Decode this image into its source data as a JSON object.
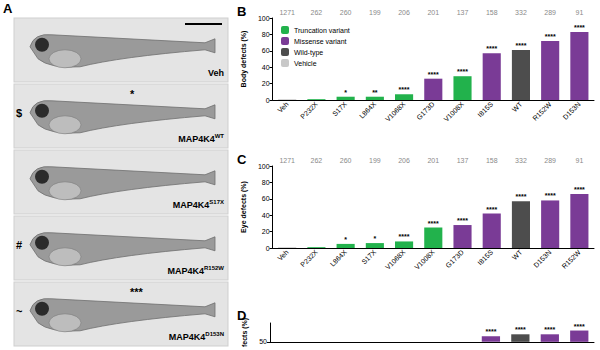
{
  "panel_a": {
    "label": "A",
    "images": [
      {
        "label": "Veh"
      },
      {
        "label": "MAP4K4",
        "superscript": "WT",
        "marks": [
          "$",
          "*"
        ]
      },
      {
        "label": "MAP4K4",
        "superscript": "S17X"
      },
      {
        "label": "MAP4K4",
        "superscript": "R152W",
        "marks": [
          "#"
        ]
      },
      {
        "label": "MAP4K4",
        "superscript": "D153N",
        "marks": [
          "~",
          "***"
        ]
      }
    ]
  },
  "chart_data": [
    {
      "type": "bar",
      "title": "B",
      "y_label": "Body defects (%)",
      "categories": [
        "Veh",
        "P232X",
        "S17X",
        "L864X",
        "V1068X",
        "G173D",
        "V1008X",
        "I815S",
        "WT",
        "R152W",
        "D153N"
      ],
      "counts": [
        1271,
        262,
        260,
        199,
        206,
        201,
        137,
        158,
        332,
        289,
        91
      ],
      "series": [
        {
          "name": "Truncation variant",
          "color": "#22b24c",
          "values": [
            null,
            1,
            4,
            4,
            7,
            null,
            29,
            null,
            null,
            null,
            null
          ]
        },
        {
          "name": "Missense variant",
          "color": "#7a3b96",
          "values": [
            null,
            null,
            null,
            null,
            null,
            26,
            null,
            57,
            null,
            72,
            83
          ]
        },
        {
          "name": "Wild-type",
          "color": "#4d4d4d",
          "values": [
            null,
            null,
            null,
            null,
            null,
            null,
            null,
            null,
            61,
            null,
            null
          ]
        },
        {
          "name": "Vehicle",
          "color": "#c8c8c8",
          "values": [
            1,
            null,
            null,
            null,
            null,
            null,
            null,
            null,
            null,
            null,
            null
          ]
        }
      ],
      "stacked": true,
      "significance": [
        null,
        null,
        "*",
        "**",
        "****",
        "****",
        "****",
        "****",
        "****",
        "****",
        "****"
      ],
      "ylim": [
        0,
        100
      ],
      "yticks": [
        0,
        20,
        40,
        60,
        80,
        100
      ],
      "legend": "upper left"
    },
    {
      "type": "bar",
      "title": "C",
      "y_label": "Eye defects (%)",
      "categories": [
        "Veh",
        "P232X",
        "L864X",
        "S17X",
        "V1068X",
        "V1008X",
        "G173D",
        "I815S",
        "WT",
        "D153N",
        "R152W"
      ],
      "counts": [
        1271,
        262,
        260,
        199,
        206,
        201,
        137,
        158,
        332,
        289,
        91
      ],
      "values": [
        1,
        1,
        5,
        6,
        8,
        25,
        28,
        42,
        57,
        58,
        66
      ],
      "colors": [
        "#c8c8c8",
        "#22b24c",
        "#22b24c",
        "#22b24c",
        "#22b24c",
        "#22b24c",
        "#7a3b96",
        "#7a3b96",
        "#4d4d4d",
        "#7a3b96",
        "#7a3b96"
      ],
      "significance": [
        null,
        null,
        "*",
        "*",
        "****",
        "****",
        "****",
        "****",
        "****",
        "****",
        "****"
      ],
      "ylim": [
        0,
        100
      ],
      "yticks": [
        0,
        20,
        40,
        60,
        80,
        100
      ]
    },
    {
      "type": "bar",
      "title": "D",
      "y_label": "fects (%)",
      "categories": [
        null,
        null,
        null,
        null,
        null,
        null,
        null,
        null,
        null,
        null,
        null
      ],
      "values": [
        null,
        null,
        null,
        null,
        null,
        null,
        null,
        53,
        54,
        54,
        56
      ],
      "colors": [
        "#c8c8c8",
        "#22b24c",
        "#22b24c",
        "#22b24c",
        "#22b24c",
        "#22b24c",
        "#7a3b96",
        "#7a3b96",
        "#4d4d4d",
        "#7a3b96",
        "#7a3b96"
      ],
      "significance": [
        null,
        null,
        null,
        null,
        null,
        null,
        null,
        "****",
        "****",
        "****",
        "****"
      ],
      "ylim": [
        50,
        60
      ],
      "yticks": [
        50
      ]
    }
  ]
}
